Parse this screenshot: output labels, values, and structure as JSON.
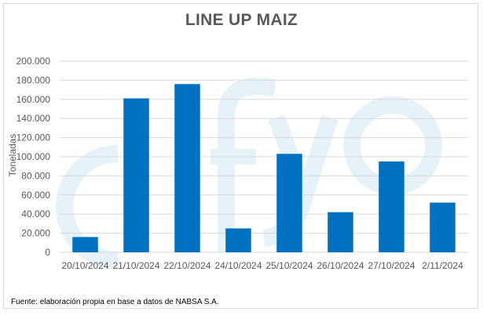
{
  "chart_data": {
    "type": "bar",
    "title": "LINE UP MAIZ",
    "xlabel": "",
    "ylabel": "Toneladas",
    "categories": [
      "20/10/2024",
      "21/10/2024",
      "22/10/2024",
      "24/10/2024",
      "25/10/2024",
      "26/10/2024",
      "27/10/2024",
      "2/11/2024"
    ],
    "values": [
      16000,
      161000,
      176000,
      25000,
      103000,
      42000,
      95000,
      52000
    ],
    "ylim": [
      0,
      200000
    ],
    "yticks": [
      "0",
      "20.000",
      "40.000",
      "60.000",
      "80.000",
      "100.000",
      "120.000",
      "140.000",
      "160.000",
      "180.000",
      "200.000"
    ],
    "grid": true,
    "legend": "none",
    "bar_color": "#0070c0",
    "grid_color": "#d9d9d9",
    "watermark_color": "#e6f1f8"
  },
  "source_text": "Fuente: elaboración propia en base a datos de NABSA S.A."
}
